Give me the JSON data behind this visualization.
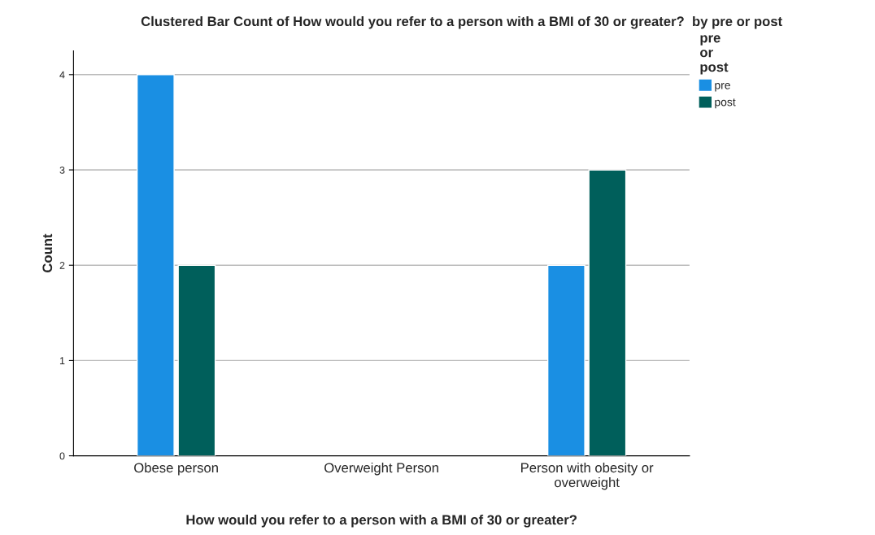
{
  "chart_data": {
    "type": "bar",
    "title": "Clustered Bar Count of How would you refer to a person with a BMI of 30 or greater?  by pre or post",
    "xlabel": "How would you refer to a person with a BMI of 30 or greater?",
    "ylabel": "Count",
    "legend_title": "pre\nor\npost",
    "categories": [
      "Obese person",
      "Overweight Person",
      "Person with obesity or\noverweight"
    ],
    "series": [
      {
        "name": "pre",
        "color": "#1a8fe3",
        "values": [
          4,
          null,
          2
        ]
      },
      {
        "name": "post",
        "color": "#005f5b",
        "values": [
          2,
          null,
          3
        ]
      }
    ],
    "ylim": [
      0,
      4.25
    ],
    "yticks": [
      0,
      1,
      2,
      3,
      4
    ],
    "grid": "y",
    "legend": "top right"
  }
}
